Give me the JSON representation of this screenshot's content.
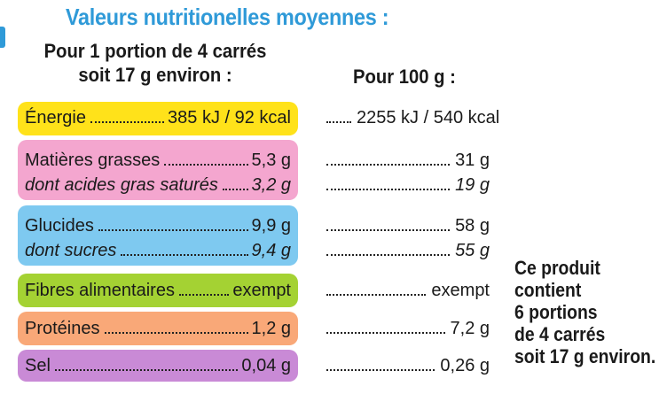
{
  "title": "Valeurs nutritionelles moyennes :",
  "headers": {
    "portion_line1": "Pour 1 portion de 4 carrés",
    "portion_line2": "soit 17 g environ :",
    "per100": "Pour 100 g :"
  },
  "band_colors": {
    "energie": "#ffe21a",
    "matieres": "#f4a6cf",
    "glucides": "#7ec9f0",
    "fibres": "#a4d233",
    "proteines": "#f9a878",
    "sel": "#c98ad6"
  },
  "rows": [
    {
      "label": "Énergie",
      "portion": "385 kJ / 92 kcal",
      "per100": "2255 kJ / 540 kcal"
    },
    {
      "label": "Matières grasses",
      "portion": "5,3 g",
      "per100": "31 g"
    },
    {
      "label": "dont acides gras saturés",
      "portion": "3,2 g",
      "per100": "19 g"
    },
    {
      "label": "Glucides",
      "portion": "9,9 g",
      "per100": "58 g"
    },
    {
      "label": "dont sucres",
      "portion": "9,4 g",
      "per100": "55 g"
    },
    {
      "label": "Fibres alimentaires",
      "portion": "exempt",
      "per100": "exempt"
    },
    {
      "label": "Protéines",
      "portion": "1,2 g",
      "per100": "7,2 g"
    },
    {
      "label": "Sel",
      "portion": "0,04 g",
      "per100": "0,26 g"
    }
  ],
  "note": [
    "Ce produit",
    "contient",
    "6 portions",
    "de 4 carrés",
    "soit 17 g environ."
  ]
}
